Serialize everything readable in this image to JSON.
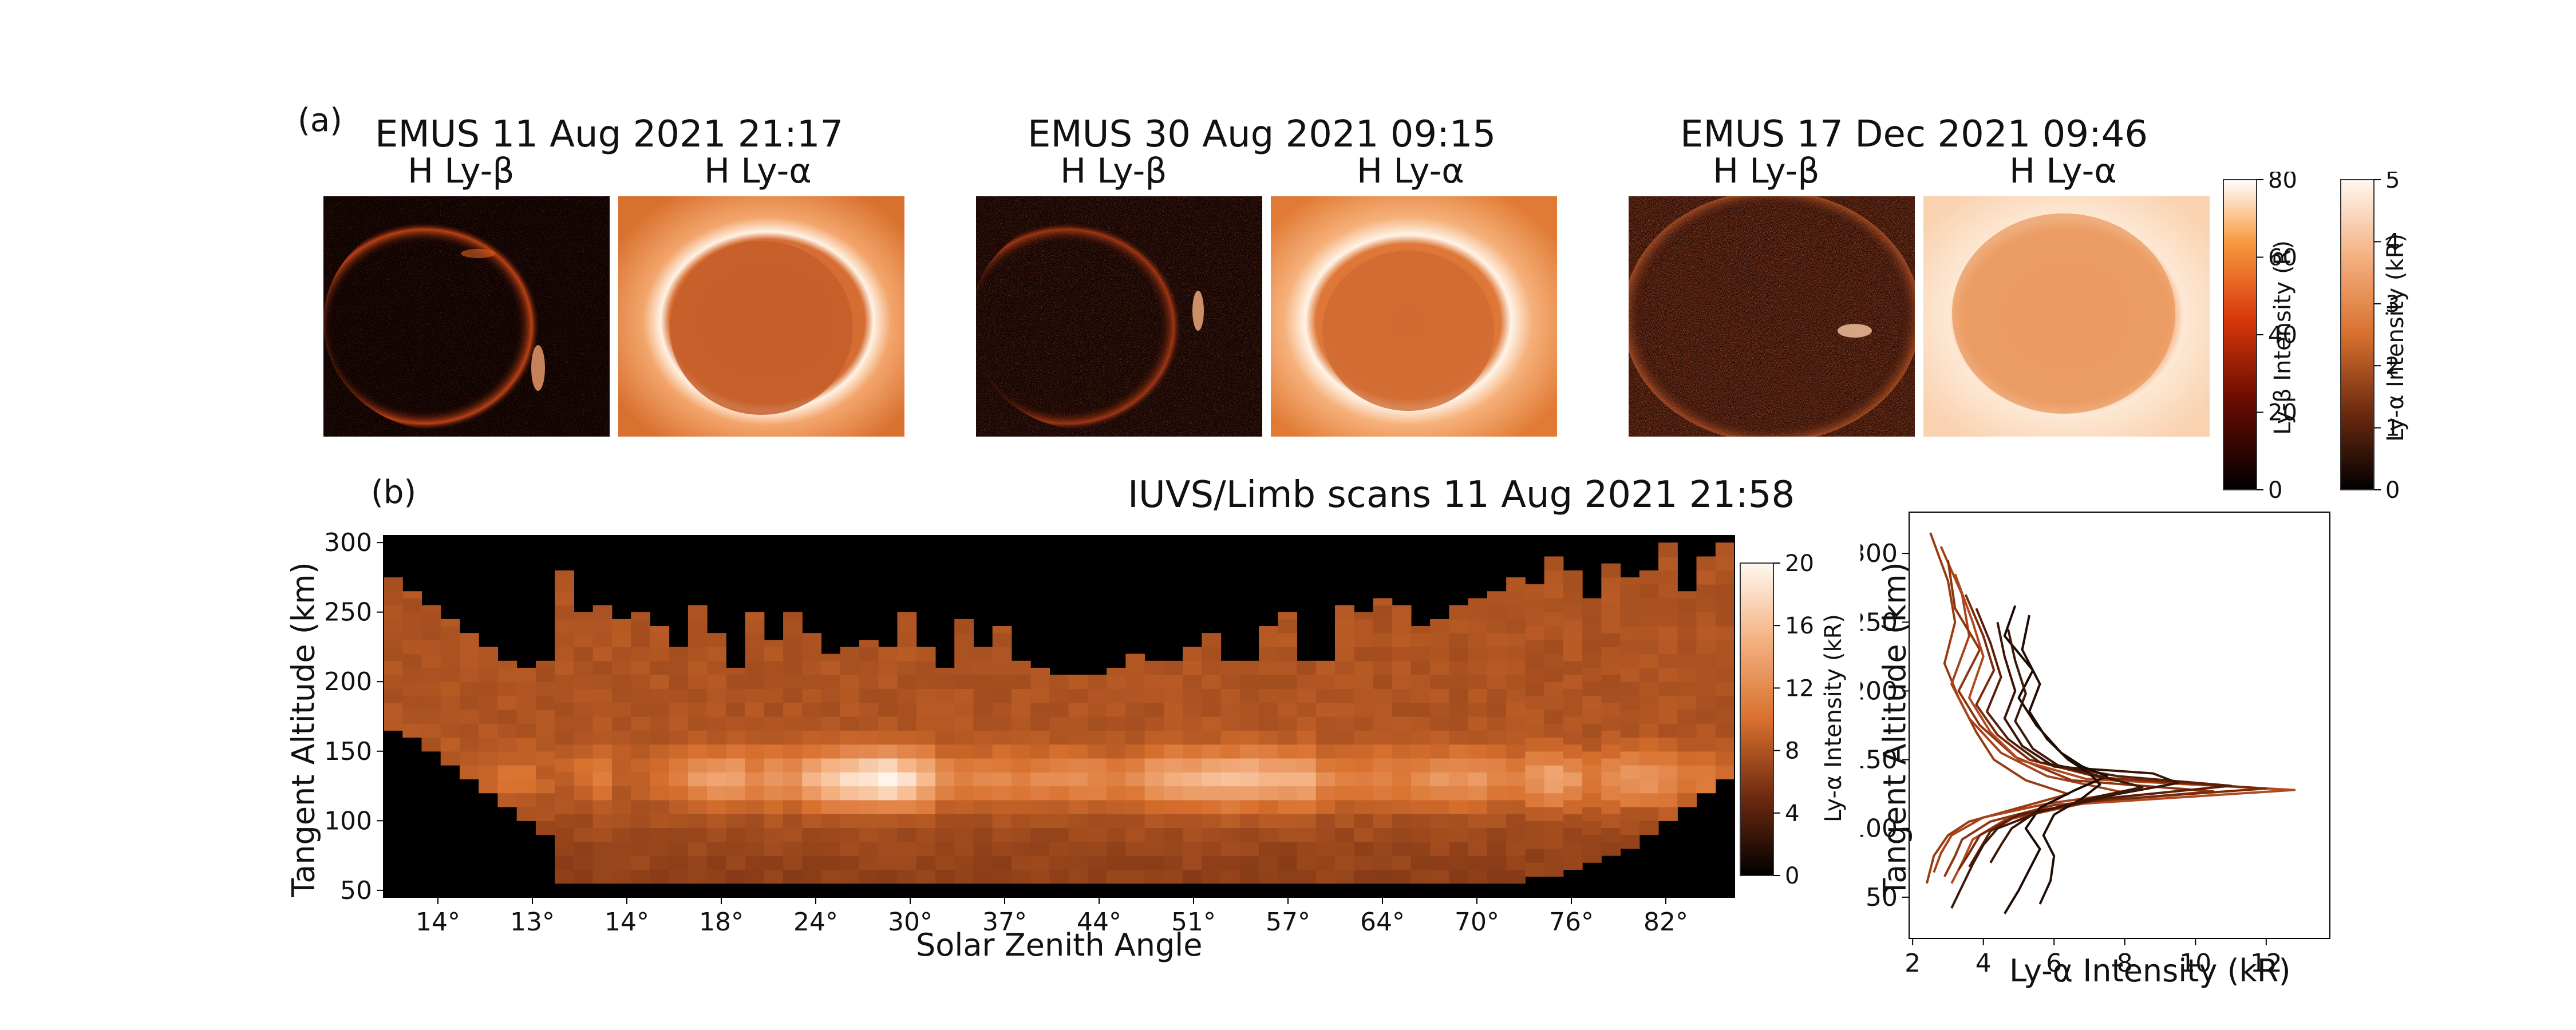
{
  "panel_a": {
    "label": "(a)",
    "groups": [
      {
        "title": "EMUS  11 Aug 2021 21:17",
        "beta_label": "H Ly-β",
        "alpha_label": "H Ly-α"
      },
      {
        "title": "EMUS  30 Aug 2021 09:15",
        "beta_label": "H Ly-β",
        "alpha_label": "H Ly-α"
      },
      {
        "title": "EMUS  17 Dec 2021 09:46",
        "beta_label": "H Ly-β",
        "alpha_label": "H Ly-α"
      }
    ],
    "colorbar_beta": {
      "label": "Ly-β Intensity (R)",
      "ticks": [
        "0",
        "20",
        "40",
        "60",
        "80"
      ],
      "range": [
        0,
        80
      ]
    },
    "colorbar_alpha": {
      "label": "Ly-α Intensity (kR)",
      "ticks": [
        "0",
        "1",
        "2",
        "3",
        "4",
        "5"
      ],
      "range": [
        0,
        5
      ]
    }
  },
  "panel_b": {
    "label": "(b)",
    "title": "IUVS/Limb scans  11 Aug 2021 21:58",
    "xlabel": "Solar Zenith Angle",
    "ylabel": "Tangent Altitude (km)",
    "xticks": [
      "14°",
      "13°",
      "14°",
      "18°",
      "24°",
      "30°",
      "37°",
      "44°",
      "51°",
      "57°",
      "64°",
      "70°",
      "76°",
      "82°"
    ],
    "yticks": [
      "50",
      "100",
      "150",
      "200",
      "250",
      "300"
    ],
    "colorbar": {
      "label": "Ly-α Intensity (kR)",
      "ticks": [
        "0",
        "4",
        "8",
        "12",
        "16",
        "20"
      ],
      "range": [
        0,
        20
      ]
    }
  },
  "chart_data": [
    {
      "type": "heatmap",
      "title": "IUVS/Limb scans  11 Aug 2021 21:58",
      "xlabel": "Solar Zenith Angle",
      "ylabel": "Tangent Altitude (km)",
      "ylim": [
        45,
        305
      ],
      "x_tick_labels": [
        "14°",
        "13°",
        "14°",
        "18°",
        "24°",
        "30°",
        "37°",
        "44°",
        "51°",
        "57°",
        "64°",
        "70°",
        "76°",
        "82°"
      ],
      "scans": 71,
      "colorbar_range_kR": [
        0,
        20
      ],
      "upper_boundary_km": [
        275,
        265,
        255,
        245,
        235,
        225,
        215,
        210,
        215,
        280,
        250,
        255,
        245,
        250,
        240,
        225,
        255,
        235,
        210,
        250,
        230,
        250,
        235,
        220,
        225,
        230,
        225,
        250,
        225,
        210,
        245,
        225,
        240,
        215,
        210,
        205,
        205,
        205,
        210,
        220,
        215,
        215,
        225,
        235,
        215,
        215,
        240,
        250,
        215,
        215,
        255,
        250,
        260,
        255,
        240,
        245,
        255,
        260,
        265,
        275,
        270,
        290,
        280,
        260,
        285,
        275,
        280,
        300,
        265,
        290,
        300
      ],
      "lower_boundary_km": [
        165,
        160,
        150,
        140,
        130,
        120,
        110,
        100,
        90,
        55,
        55,
        55,
        55,
        55,
        55,
        55,
        55,
        55,
        55,
        55,
        55,
        55,
        55,
        55,
        55,
        55,
        55,
        55,
        55,
        55,
        55,
        55,
        55,
        55,
        55,
        55,
        55,
        55,
        55,
        55,
        55,
        55,
        55,
        55,
        55,
        55,
        55,
        55,
        55,
        55,
        55,
        55,
        55,
        55,
        55,
        55,
        55,
        55,
        55,
        55,
        60,
        60,
        65,
        70,
        75,
        80,
        90,
        100,
        110,
        120,
        130
      ],
      "peak_altitude_km": 130,
      "peak_intensity_kR": [
        8,
        8,
        8,
        9,
        9,
        9,
        10,
        10,
        9,
        9,
        10,
        11,
        9,
        9,
        10,
        11,
        13,
        14,
        14,
        12,
        13,
        13,
        15,
        17,
        18,
        19,
        20,
        18,
        16,
        12,
        11,
        12,
        12,
        11,
        12,
        12,
        13,
        12,
        11,
        12,
        14,
        15,
        15,
        16,
        16,
        16,
        15,
        15,
        15,
        12,
        11,
        11,
        12,
        11,
        12,
        13,
        13,
        13,
        12,
        11,
        13,
        14,
        13,
        11,
        12,
        13,
        13,
        12,
        11,
        11,
        10
      ]
    },
    {
      "type": "line",
      "xlabel": "Ly-α Intensity (kR)",
      "ylabel": "Tangent Altitude (km)",
      "xlim": [
        1.9,
        13.8
      ],
      "ylim": [
        20,
        330
      ],
      "xticks": [
        2,
        4,
        6,
        8,
        10,
        12
      ],
      "yticks": [
        50,
        100,
        150,
        200,
        250,
        300
      ],
      "series": [
        {
          "color": "#9a3a10",
          "points": [
            [
              2.5,
              315
            ],
            [
              3.0,
              280
            ],
            [
              3.2,
              250
            ],
            [
              2.9,
              220
            ],
            [
              3.3,
              195
            ],
            [
              3.8,
              170
            ],
            [
              4.3,
              150
            ],
            [
              5.2,
              135
            ],
            [
              6.4,
              125
            ],
            [
              5.0,
              115
            ],
            [
              3.6,
              105
            ],
            [
              3.0,
              95
            ],
            [
              2.6,
              80
            ],
            [
              2.5,
              70
            ],
            [
              2.4,
              60
            ]
          ]
        },
        {
          "color": "#a8421a",
          "points": [
            [
              2.8,
              305
            ],
            [
              3.4,
              270
            ],
            [
              3.6,
              240
            ],
            [
              3.1,
              205
            ],
            [
              3.6,
              180
            ],
            [
              4.5,
              155
            ],
            [
              5.8,
              138
            ],
            [
              8.0,
              126
            ],
            [
              5.8,
              118
            ],
            [
              4.0,
              108
            ],
            [
              3.1,
              95
            ],
            [
              2.8,
              82
            ],
            [
              2.6,
              68
            ]
          ]
        },
        {
          "color": "#8e3410",
          "points": [
            [
              3.0,
              295
            ],
            [
              3.2,
              260
            ],
            [
              3.9,
              230
            ],
            [
              3.3,
              200
            ],
            [
              3.9,
              175
            ],
            [
              4.9,
              152
            ],
            [
              6.5,
              135
            ],
            [
              10.5,
              127
            ],
            [
              6.0,
              117
            ],
            [
              4.2,
              105
            ],
            [
              3.4,
              92
            ],
            [
              3.2,
              80
            ],
            [
              2.9,
              65
            ]
          ]
        },
        {
          "color": "#b04a1e",
          "points": [
            [
              3.2,
              285
            ],
            [
              3.7,
              250
            ],
            [
              4.0,
              225
            ],
            [
              3.6,
              195
            ],
            [
              4.2,
              170
            ],
            [
              5.0,
              150
            ],
            [
              6.9,
              136
            ],
            [
              12.8,
              128
            ],
            [
              6.8,
              118
            ],
            [
              4.6,
              106
            ],
            [
              3.7,
              92
            ],
            [
              3.4,
              75
            ],
            [
              3.1,
              60
            ]
          ]
        },
        {
          "color": "#7a2a0c",
          "points": [
            [
              3.5,
              270
            ],
            [
              4.0,
              240
            ],
            [
              4.3,
              215
            ],
            [
              3.8,
              190
            ],
            [
              4.4,
              168
            ],
            [
              5.3,
              150
            ],
            [
              7.3,
              137
            ],
            [
              12.0,
              129
            ],
            [
              7.1,
              120
            ],
            [
              4.8,
              108
            ],
            [
              3.9,
              95
            ],
            [
              3.6,
              82
            ],
            [
              3.3,
              70
            ]
          ]
        },
        {
          "color": "#5a1e08",
          "points": [
            [
              3.8,
              260
            ],
            [
              4.2,
              235
            ],
            [
              4.5,
              210
            ],
            [
              4.1,
              185
            ],
            [
              4.7,
              165
            ],
            [
              5.6,
              148
            ],
            [
              7.8,
              138
            ],
            [
              11.0,
              131
            ],
            [
              7.5,
              122
            ],
            [
              5.0,
              110
            ],
            [
              4.2,
              98
            ],
            [
              3.9,
              85
            ],
            [
              3.6,
              72
            ]
          ]
        },
        {
          "color": "#3a1404",
          "points": [
            [
              4.4,
              250
            ],
            [
              4.6,
              225
            ],
            [
              4.9,
              200
            ],
            [
              4.6,
              180
            ],
            [
              5.1,
              160
            ],
            [
              6.0,
              145
            ],
            [
              8.8,
              140
            ],
            [
              9.5,
              133
            ],
            [
              7.8,
              125
            ],
            [
              5.5,
              112
            ],
            [
              4.8,
              100
            ],
            [
              4.5,
              88
            ],
            [
              4.2,
              75
            ]
          ]
        },
        {
          "color": "#1a0a04",
          "points": [
            [
              4.9,
              262
            ],
            [
              4.6,
              240
            ],
            [
              5.4,
              215
            ],
            [
              5.0,
              195
            ],
            [
              5.5,
              175
            ],
            [
              6.2,
              155
            ],
            [
              6.8,
              145
            ],
            [
              7.5,
              138
            ],
            [
              6.6,
              128
            ],
            [
              5.6,
              115
            ],
            [
              5.2,
              100
            ],
            [
              5.6,
              85
            ],
            [
              5.3,
              70
            ],
            [
              5.0,
              55
            ],
            [
              4.6,
              38
            ]
          ]
        },
        {
          "color": "#220c04",
          "points": [
            [
              5.3,
              255
            ],
            [
              5.1,
              230
            ],
            [
              5.6,
              205
            ],
            [
              5.3,
              185
            ],
            [
              5.8,
              165
            ],
            [
              6.4,
              150
            ],
            [
              7.0,
              140
            ],
            [
              7.3,
              132
            ],
            [
              6.8,
              122
            ],
            [
              6.0,
              110
            ],
            [
              5.7,
              95
            ],
            [
              6.0,
              80
            ],
            [
              5.9,
              62
            ],
            [
              5.6,
              45
            ]
          ]
        },
        {
          "color": "#3d1806",
          "points": [
            [
              4.7,
              245
            ],
            [
              4.9,
              222
            ],
            [
              5.2,
              198
            ],
            [
              4.9,
              178
            ],
            [
              5.4,
              158
            ],
            [
              6.1,
              146
            ],
            [
              7.6,
              136
            ],
            [
              8.5,
              130
            ],
            [
              7.2,
              123
            ],
            [
              5.6,
              112
            ],
            [
              4.4,
              100
            ],
            [
              4.0,
              88
            ],
            [
              3.7,
              74
            ],
            [
              3.4,
              58
            ],
            [
              3.1,
              42
            ]
          ]
        }
      ]
    }
  ]
}
